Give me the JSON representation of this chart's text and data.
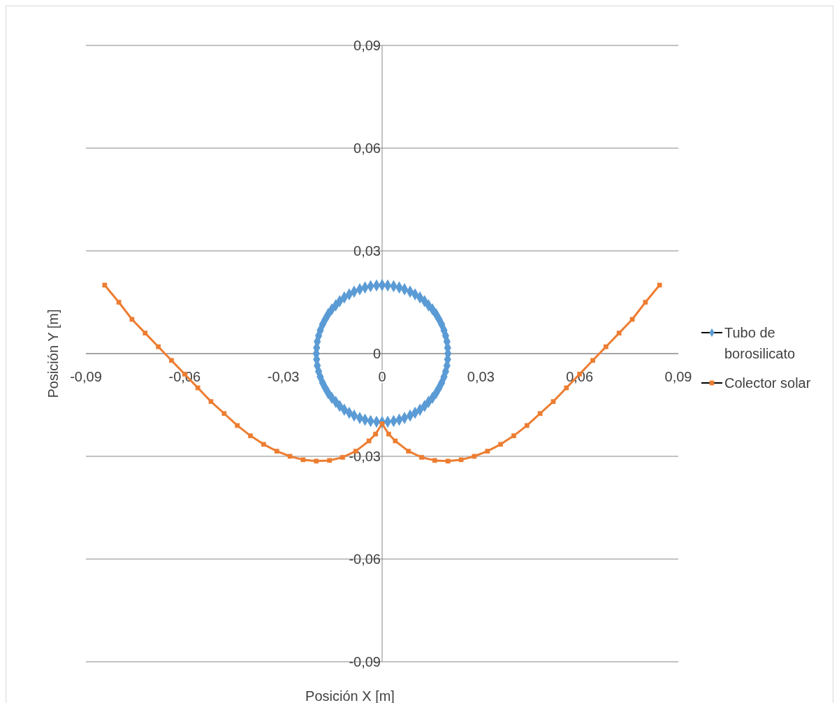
{
  "chart_data": {
    "type": "line",
    "xlabel": "Posición X [m]",
    "ylabel": "Posición Y [m]",
    "xlim": [
      -0.09,
      0.09
    ],
    "ylim": [
      -0.09,
      0.09
    ],
    "xticks": [
      {
        "value": -0.09,
        "label": "-0,09"
      },
      {
        "value": -0.06,
        "label": "-0,06"
      },
      {
        "value": -0.03,
        "label": "-0,03"
      },
      {
        "value": 0,
        "label": "0"
      },
      {
        "value": 0.03,
        "label": "0,03"
      },
      {
        "value": 0.06,
        "label": "0,06"
      },
      {
        "value": 0.09,
        "label": "0,09"
      }
    ],
    "yticks": [
      {
        "value": -0.09,
        "label": "-0,09"
      },
      {
        "value": -0.06,
        "label": "-0,06"
      },
      {
        "value": -0.03,
        "label": "-0,03"
      },
      {
        "value": 0,
        "label": "0"
      },
      {
        "value": 0.03,
        "label": "0,03"
      },
      {
        "value": 0.06,
        "label": "0,06"
      },
      {
        "value": 0.09,
        "label": "0,09"
      }
    ],
    "grid": "y",
    "legend": "right",
    "line_style": "solid",
    "series": [
      {
        "name": "Tubo de borosilicato",
        "type": "scatter",
        "color": "#5b9bd5",
        "marker": "diamond",
        "x": [
          0.02,
          0.0199,
          0.0197,
          0.0193,
          0.0188,
          0.0181,
          0.0173,
          0.0164,
          0.0153,
          0.0141,
          0.0129,
          0.0115,
          0.01,
          0.0085,
          0.0068,
          0.0052,
          0.0035,
          0.0017,
          0,
          -0.0017,
          -0.0035,
          -0.0052,
          -0.0068,
          -0.0085,
          -0.01,
          -0.0115,
          -0.0129,
          -0.0141,
          -0.0153,
          -0.0164,
          -0.0173,
          -0.0181,
          -0.0188,
          -0.0193,
          -0.0197,
          -0.0199,
          -0.02,
          -0.0199,
          -0.0197,
          -0.0193,
          -0.0188,
          -0.0181,
          -0.0173,
          -0.0164,
          -0.0153,
          -0.0141,
          -0.0129,
          -0.0115,
          -0.01,
          -0.0085,
          -0.0068,
          -0.0052,
          -0.0035,
          -0.0017,
          0,
          0.0017,
          0.0035,
          0.0052,
          0.0068,
          0.0085,
          0.01,
          0.0115,
          0.0129,
          0.0141,
          0.0153,
          0.0164,
          0.0173,
          0.0181,
          0.0188,
          0.0193,
          0.0197,
          0.0199
        ],
        "values": [
          0,
          0.0017,
          0.0035,
          0.0052,
          0.0068,
          0.0085,
          0.01,
          0.0115,
          0.0129,
          0.0141,
          0.0153,
          0.0164,
          0.0173,
          0.0181,
          0.0188,
          0.0193,
          0.0197,
          0.0199,
          0.02,
          0.0199,
          0.0197,
          0.0193,
          0.0188,
          0.0181,
          0.0173,
          0.0164,
          0.0153,
          0.0141,
          0.0129,
          0.0115,
          0.01,
          0.0085,
          0.0068,
          0.0052,
          0.0035,
          0.0017,
          0,
          -0.0017,
          -0.0035,
          -0.0052,
          -0.0068,
          -0.0085,
          -0.01,
          -0.0115,
          -0.0129,
          -0.0141,
          -0.0153,
          -0.0164,
          -0.0173,
          -0.0181,
          -0.0188,
          -0.0193,
          -0.0197,
          -0.0199,
          -0.02,
          -0.0199,
          -0.0197,
          -0.0193,
          -0.0188,
          -0.0181,
          -0.0173,
          -0.0164,
          -0.0153,
          -0.0141,
          -0.0129,
          -0.0115,
          -0.01,
          -0.0085,
          -0.0068,
          -0.0052,
          -0.0035,
          -0.0017
        ]
      },
      {
        "name": "Colector solar",
        "color": "#ed7d31",
        "marker": "square",
        "x": [
          -0.0843,
          -0.08,
          -0.076,
          -0.072,
          -0.068,
          -0.064,
          -0.06,
          -0.056,
          -0.052,
          -0.048,
          -0.044,
          -0.04,
          -0.036,
          -0.032,
          -0.028,
          -0.024,
          -0.02,
          -0.016,
          -0.012,
          -0.008,
          -0.004,
          -0.002,
          0,
          0.002,
          0.004,
          0.008,
          0.012,
          0.016,
          0.02,
          0.024,
          0.028,
          0.032,
          0.036,
          0.04,
          0.044,
          0.048,
          0.052,
          0.056,
          0.06,
          0.064,
          0.068,
          0.072,
          0.076,
          0.08,
          0.0843
        ],
        "values": [
          0.02,
          0.015,
          0.01,
          0.006,
          0.002,
          -0.002,
          -0.006,
          -0.01,
          -0.014,
          -0.0175,
          -0.021,
          -0.024,
          -0.0265,
          -0.0285,
          -0.03,
          -0.031,
          -0.0314,
          -0.0312,
          -0.0303,
          -0.0285,
          -0.0255,
          -0.0235,
          -0.0205,
          -0.0235,
          -0.0255,
          -0.0285,
          -0.0303,
          -0.0312,
          -0.0314,
          -0.031,
          -0.03,
          -0.0285,
          -0.0265,
          -0.024,
          -0.021,
          -0.0175,
          -0.014,
          -0.01,
          -0.006,
          -0.002,
          0.002,
          0.006,
          0.01,
          0.015,
          0.02
        ]
      }
    ]
  }
}
